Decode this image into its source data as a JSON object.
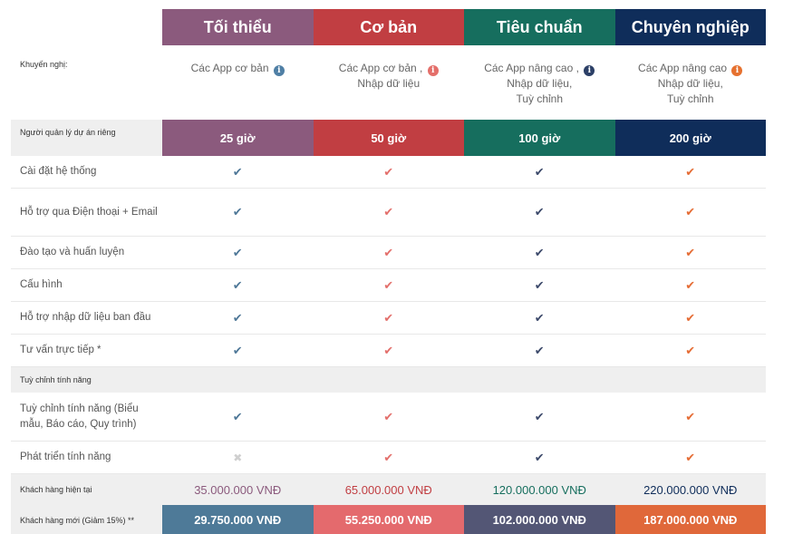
{
  "plans": [
    {
      "name": "Tối thiểu",
      "rec_lines": [
        "Các App cơ bản"
      ],
      "hours": "25 giờ",
      "current_price": "35.000.000 VNĐ",
      "new_price": "29.750.000 VNĐ"
    },
    {
      "name": "Cơ bản",
      "rec_lines": [
        "Các App cơ bản ,",
        "Nhập dữ liệu"
      ],
      "hours": "50 giờ",
      "current_price": "65.000.000 VNĐ",
      "new_price": "55.250.000 VNĐ"
    },
    {
      "name": "Tiêu chuẩn",
      "rec_lines": [
        "Các App nâng cao ,",
        "Nhập dữ liệu,",
        "Tuỳ chỉnh"
      ],
      "hours": "100 giờ",
      "current_price": "120.000.000 VNĐ",
      "new_price": "102.000.000 VNĐ"
    },
    {
      "name": "Chuyên nghiệp",
      "rec_lines": [
        "Các App nâng cao",
        "Nhập dữ liệu,",
        "Tuỳ chỉnh"
      ],
      "hours": "200 giờ",
      "current_price": "220.000.000 VNĐ",
      "new_price": "187.000.000 VNĐ"
    }
  ],
  "labels": {
    "recommend": "Khuyến nghị:",
    "pm": "Người quản lý dự án riêng",
    "section": "Tuỳ chỉnh tính năng",
    "current": "Khách hàng hiện tại",
    "new": "Khách hàng mới (Giảm 15%) **"
  },
  "features": [
    {
      "label": "Cài đặt hệ thống",
      "cells": [
        "check",
        "check",
        "check",
        "check"
      ]
    },
    {
      "label": "Hỗ trợ qua Điện thoại + Email",
      "cells": [
        "check",
        "check",
        "check",
        "check"
      ]
    },
    {
      "label": "Đào tạo và huấn luyện",
      "cells": [
        "check",
        "check",
        "check",
        "check"
      ]
    },
    {
      "label": "Cấu hình",
      "cells": [
        "check",
        "check",
        "check",
        "check"
      ]
    },
    {
      "label": "Hỗ trợ nhập dữ liệu ban đầu",
      "cells": [
        "check",
        "check",
        "check",
        "check"
      ]
    },
    {
      "label": "Tư vấn trực tiếp *",
      "cells": [
        "check",
        "check",
        "check",
        "check"
      ]
    }
  ],
  "custom_features": [
    {
      "label": "Tuỳ chỉnh tính năng (Biểu mẫu, Báo cáo, Quy trình)",
      "cells": [
        "check",
        "check",
        "check",
        "check"
      ]
    },
    {
      "label": "Phát triển tính năng",
      "cells": [
        "cross",
        "check",
        "check",
        "check"
      ]
    }
  ],
  "symbols": {
    "check": "✔",
    "cross": "✖",
    "info": "i"
  },
  "colors": {
    "plan1": "#8b5a7d",
    "plan2": "#c13e42",
    "plan3": "#166e5e",
    "plan4": "#0f2d5a"
  }
}
